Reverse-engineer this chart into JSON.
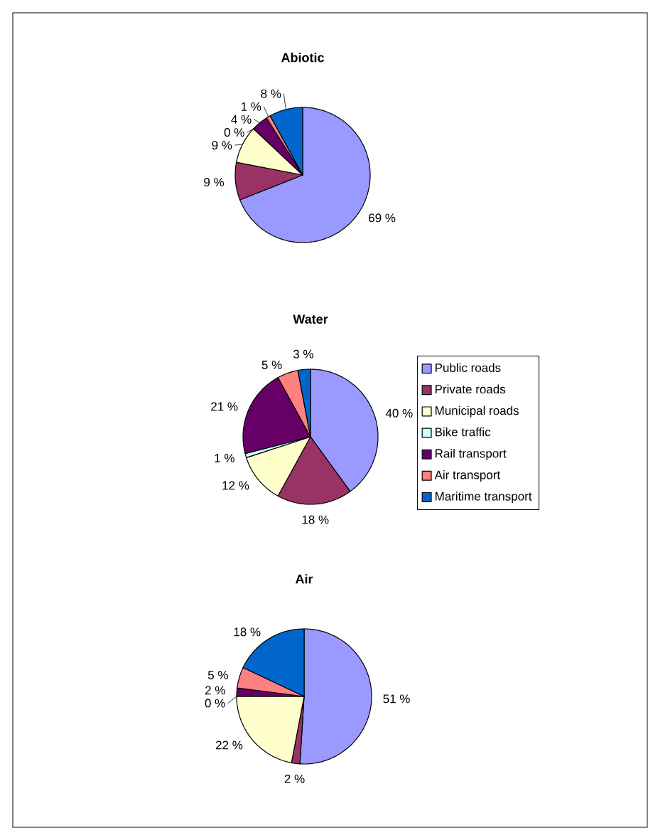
{
  "chart_data": [
    {
      "type": "pie",
      "title": "Abiotic",
      "categories": [
        null,
        null,
        null,
        null,
        null,
        null,
        null
      ],
      "values": [
        69,
        9,
        9,
        0,
        4,
        1,
        8
      ],
      "value_labels": [
        "69 %",
        "9 %",
        "9 %",
        "0 %",
        "4 %",
        "1 %",
        "8 %"
      ],
      "colors": [
        "#9999ff",
        "#993366",
        "#ffffcc",
        "#ccffff",
        "#660066",
        "#ff8080",
        "#0066cc"
      ]
    },
    {
      "type": "pie",
      "title": "Water",
      "categories": [
        "Public roads",
        "Private roads",
        "Municipal roads",
        "Bike traffic",
        "Rail transport",
        "Air transport",
        "Maritime transport"
      ],
      "values": [
        40,
        18,
        12,
        1,
        21,
        5,
        3
      ],
      "value_labels": [
        "40 %",
        "18 %",
        "12 %",
        "1 %",
        "21 %",
        "5 %",
        "3 %"
      ],
      "colors": [
        "#9999ff",
        "#993366",
        "#ffffcc",
        "#ccffff",
        "#660066",
        "#ff8080",
        "#0066cc"
      ],
      "legend": "right"
    },
    {
      "type": "pie",
      "title": "Air",
      "categories": [
        null,
        null,
        null,
        null,
        null,
        null,
        null
      ],
      "values": [
        51,
        2,
        22,
        0,
        2,
        5,
        18
      ],
      "value_labels": [
        "51 %",
        "2 %",
        "22 %",
        "0 %",
        "2 %",
        "5 %",
        "18 %"
      ],
      "colors": [
        "#9999ff",
        "#993366",
        "#ffffcc",
        "#ccffff",
        "#660066",
        "#ff8080",
        "#0066cc"
      ]
    }
  ]
}
